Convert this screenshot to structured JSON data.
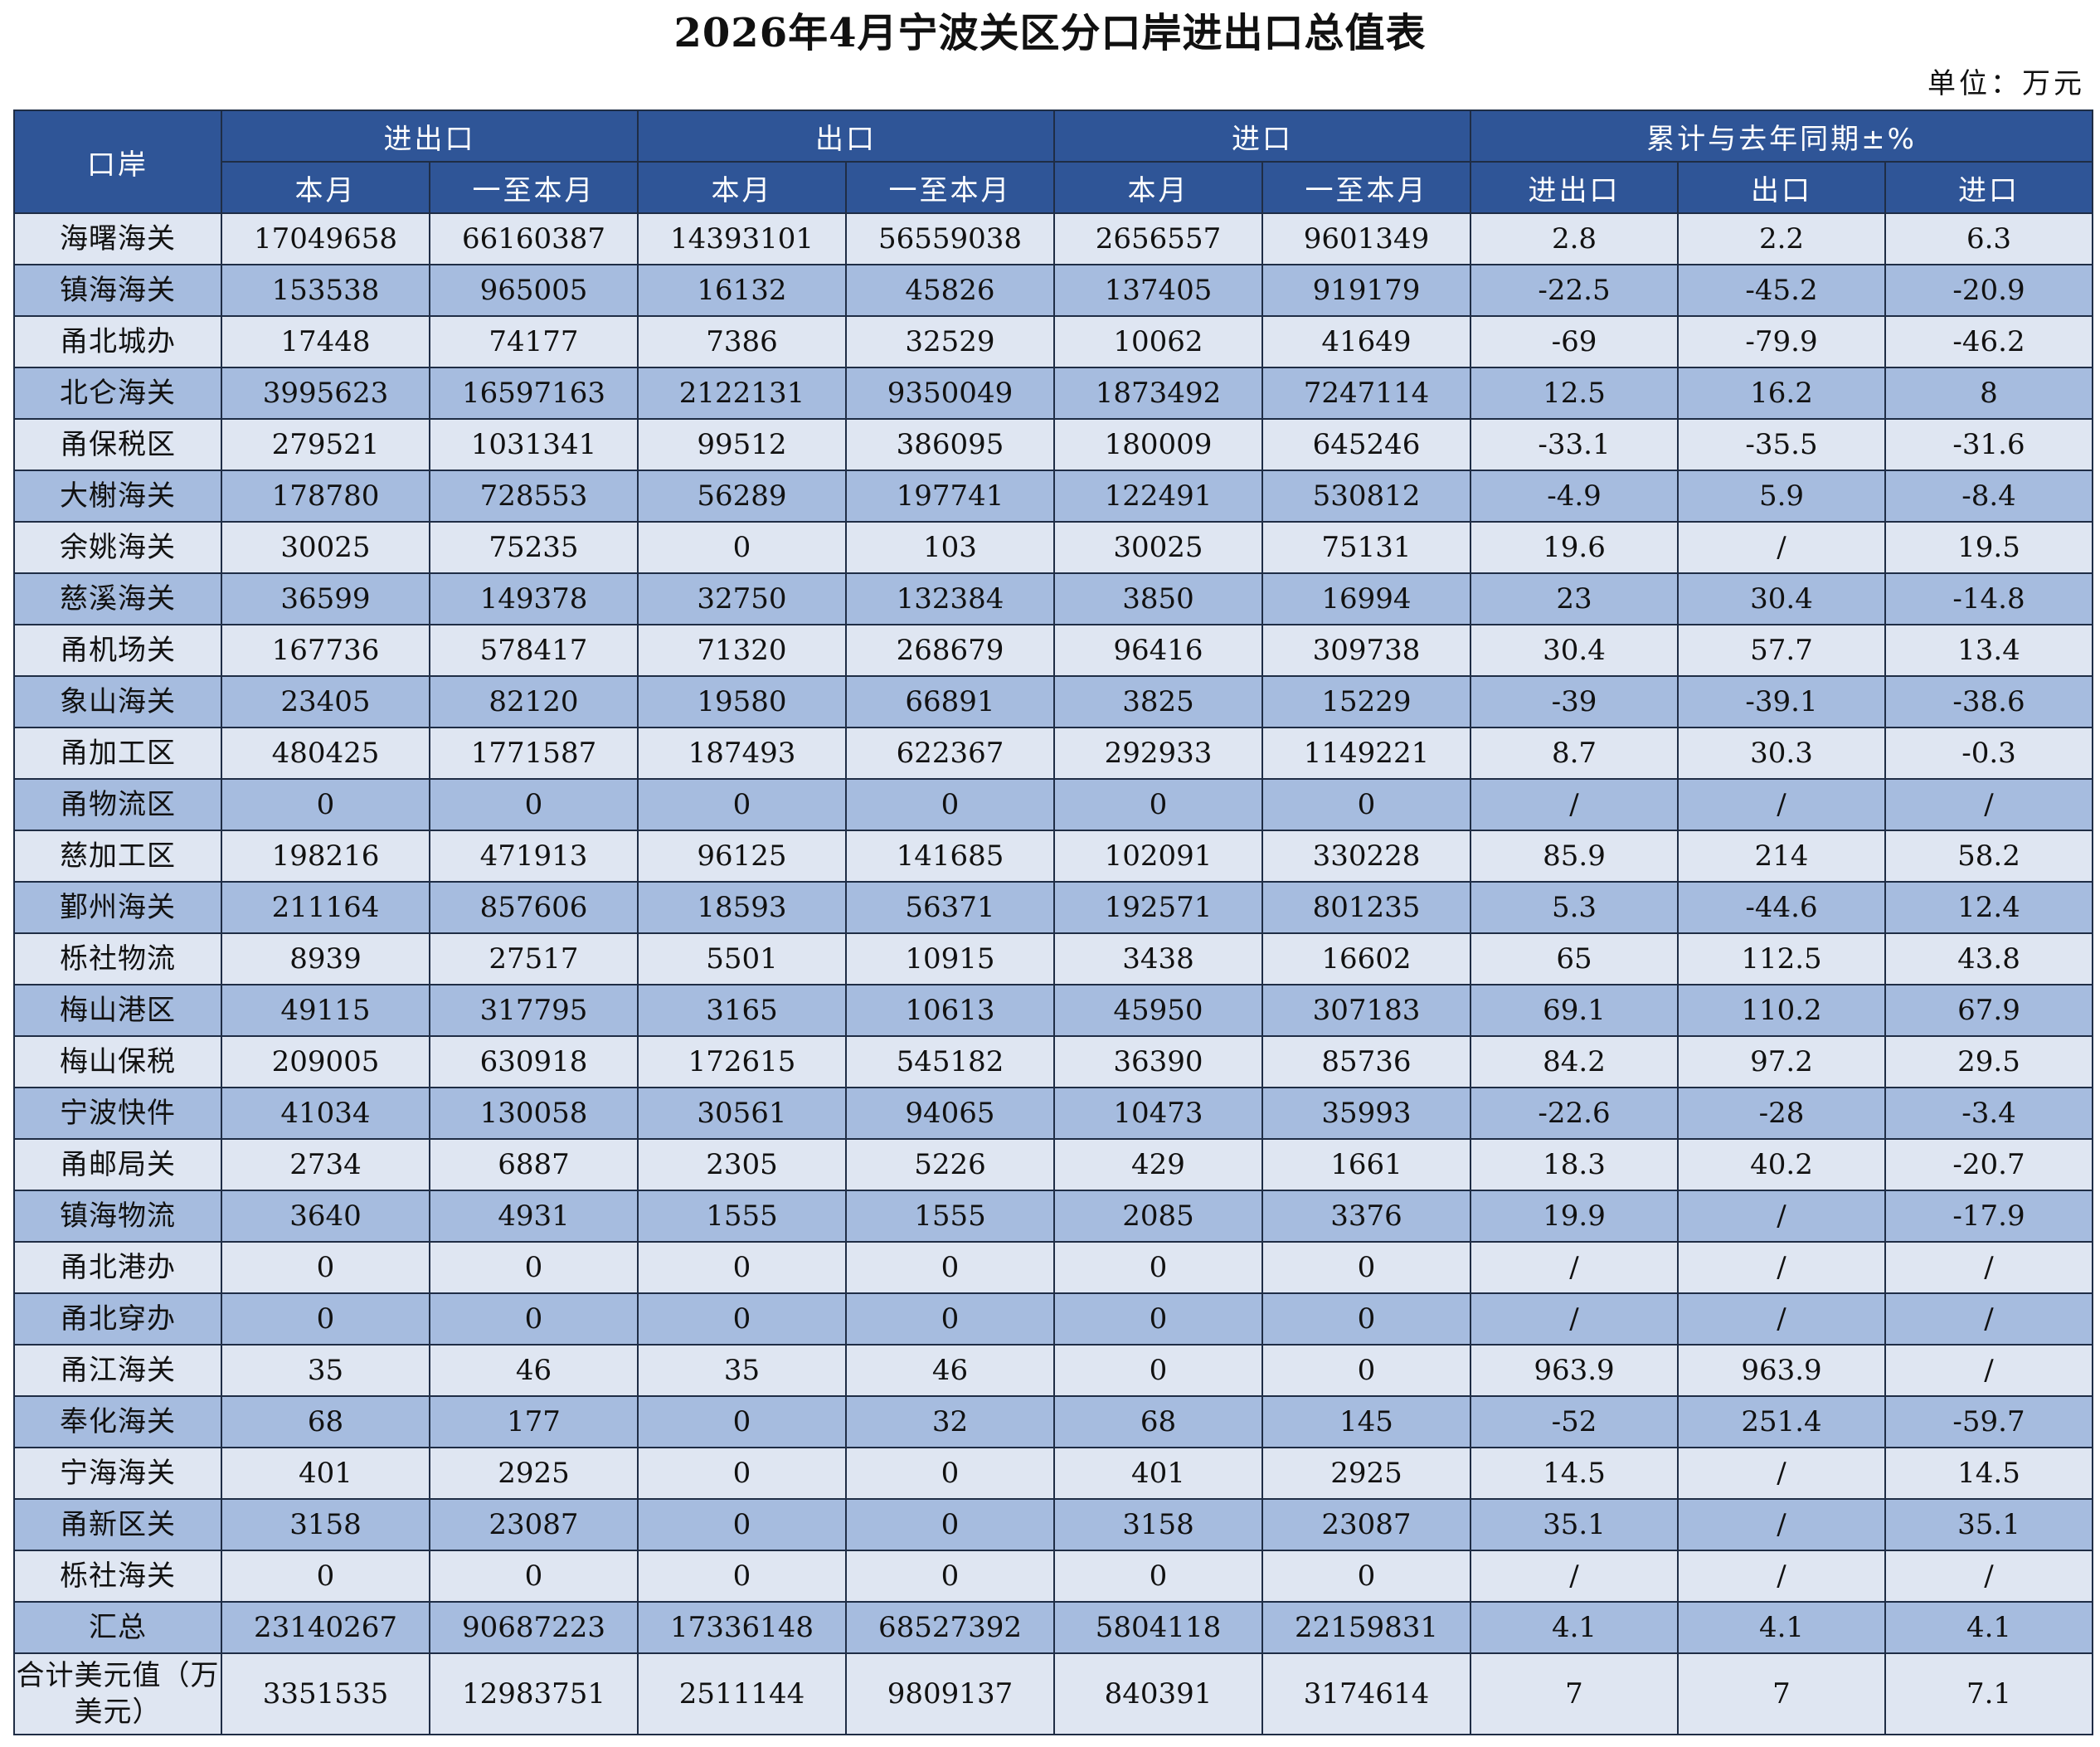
{
  "title": "2026年4月宁波关区分口岸进出口总值表",
  "unit": "单位：万元",
  "header": {
    "port": "口岸",
    "groups": [
      "进出口",
      "出口",
      "进口",
      "累计与去年同期±%"
    ],
    "sub": [
      "本月",
      "一至本月",
      "本月",
      "一至本月",
      "本月",
      "一至本月",
      "进出口",
      "出口",
      "进口"
    ]
  },
  "rows": [
    {
      "name": "海曙海关",
      "v": [
        "17049658",
        "66160387",
        "14393101",
        "56559038",
        "2656557",
        "9601349",
        "2.8",
        "2.2",
        "6.3"
      ]
    },
    {
      "name": "镇海海关",
      "v": [
        "153538",
        "965005",
        "16132",
        "45826",
        "137405",
        "919179",
        "-22.5",
        "-45.2",
        "-20.9"
      ]
    },
    {
      "name": "甬北城办",
      "v": [
        "17448",
        "74177",
        "7386",
        "32529",
        "10062",
        "41649",
        "-69",
        "-79.9",
        "-46.2"
      ]
    },
    {
      "name": "北仑海关",
      "v": [
        "3995623",
        "16597163",
        "2122131",
        "9350049",
        "1873492",
        "7247114",
        "12.5",
        "16.2",
        "8"
      ]
    },
    {
      "name": "甬保税区",
      "v": [
        "279521",
        "1031341",
        "99512",
        "386095",
        "180009",
        "645246",
        "-33.1",
        "-35.5",
        "-31.6"
      ]
    },
    {
      "name": "大榭海关",
      "v": [
        "178780",
        "728553",
        "56289",
        "197741",
        "122491",
        "530812",
        "-4.9",
        "5.9",
        "-8.4"
      ]
    },
    {
      "name": "余姚海关",
      "v": [
        "30025",
        "75235",
        "0",
        "103",
        "30025",
        "75131",
        "19.6",
        "/",
        "19.5"
      ]
    },
    {
      "name": "慈溪海关",
      "v": [
        "36599",
        "149378",
        "32750",
        "132384",
        "3850",
        "16994",
        "23",
        "30.4",
        "-14.8"
      ]
    },
    {
      "name": "甬机场关",
      "v": [
        "167736",
        "578417",
        "71320",
        "268679",
        "96416",
        "309738",
        "30.4",
        "57.7",
        "13.4"
      ]
    },
    {
      "name": "象山海关",
      "v": [
        "23405",
        "82120",
        "19580",
        "66891",
        "3825",
        "15229",
        "-39",
        "-39.1",
        "-38.6"
      ]
    },
    {
      "name": "甬加工区",
      "v": [
        "480425",
        "1771587",
        "187493",
        "622367",
        "292933",
        "1149221",
        "8.7",
        "30.3",
        "-0.3"
      ]
    },
    {
      "name": "甬物流区",
      "v": [
        "0",
        "0",
        "0",
        "0",
        "0",
        "0",
        "/",
        "/",
        "/"
      ]
    },
    {
      "name": "慈加工区",
      "v": [
        "198216",
        "471913",
        "96125",
        "141685",
        "102091",
        "330228",
        "85.9",
        "214",
        "58.2"
      ]
    },
    {
      "name": "鄞州海关",
      "v": [
        "211164",
        "857606",
        "18593",
        "56371",
        "192571",
        "801235",
        "5.3",
        "-44.6",
        "12.4"
      ]
    },
    {
      "name": "栎社物流",
      "v": [
        "8939",
        "27517",
        "5501",
        "10915",
        "3438",
        "16602",
        "65",
        "112.5",
        "43.8"
      ]
    },
    {
      "name": "梅山港区",
      "v": [
        "49115",
        "317795",
        "3165",
        "10613",
        "45950",
        "307183",
        "69.1",
        "110.2",
        "67.9"
      ]
    },
    {
      "name": "梅山保税",
      "v": [
        "209005",
        "630918",
        "172615",
        "545182",
        "36390",
        "85736",
        "84.2",
        "97.2",
        "29.5"
      ]
    },
    {
      "name": "宁波快件",
      "v": [
        "41034",
        "130058",
        "30561",
        "94065",
        "10473",
        "35993",
        "-22.6",
        "-28",
        "-3.4"
      ]
    },
    {
      "name": "甬邮局关",
      "v": [
        "2734",
        "6887",
        "2305",
        "5226",
        "429",
        "1661",
        "18.3",
        "40.2",
        "-20.7"
      ]
    },
    {
      "name": "镇海物流",
      "v": [
        "3640",
        "4931",
        "1555",
        "1555",
        "2085",
        "3376",
        "19.9",
        "/",
        "-17.9"
      ]
    },
    {
      "name": "甬北港办",
      "v": [
        "0",
        "0",
        "0",
        "0",
        "0",
        "0",
        "/",
        "/",
        "/"
      ]
    },
    {
      "name": "甬北穿办",
      "v": [
        "0",
        "0",
        "0",
        "0",
        "0",
        "0",
        "/",
        "/",
        "/"
      ]
    },
    {
      "name": "甬江海关",
      "v": [
        "35",
        "46",
        "35",
        "46",
        "0",
        "0",
        "963.9",
        "963.9",
        "/"
      ]
    },
    {
      "name": "奉化海关",
      "v": [
        "68",
        "177",
        "0",
        "32",
        "68",
        "145",
        "-52",
        "251.4",
        "-59.7"
      ]
    },
    {
      "name": "宁海海关",
      "v": [
        "401",
        "2925",
        "0",
        "0",
        "401",
        "2925",
        "14.5",
        "/",
        "14.5"
      ]
    },
    {
      "name": "甬新区关",
      "v": [
        "3158",
        "23087",
        "0",
        "0",
        "3158",
        "23087",
        "35.1",
        "/",
        "35.1"
      ]
    },
    {
      "name": "栎社海关",
      "v": [
        "0",
        "0",
        "0",
        "0",
        "0",
        "0",
        "/",
        "/",
        "/"
      ]
    },
    {
      "name": "汇总",
      "v": [
        "23140267",
        "90687223",
        "17336148",
        "68527392",
        "5804118",
        "22159831",
        "4.1",
        "4.1",
        "4.1"
      ]
    },
    {
      "name": "合计美元值（万美元）",
      "v": [
        "3351535",
        "12983751",
        "2511144",
        "9809137",
        "840391",
        "3174614",
        "7",
        "7",
        "7.1"
      ]
    }
  ]
}
